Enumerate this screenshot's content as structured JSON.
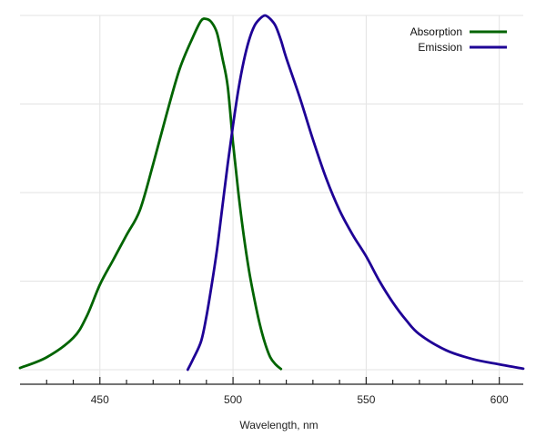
{
  "chart_data": {
    "type": "line",
    "title": "",
    "xlabel": "Wavelength, nm",
    "ylabel": "",
    "xlim": [
      420,
      609
    ],
    "ylim": [
      0,
      100
    ],
    "x_ticks_major": [
      450,
      500,
      550,
      600
    ],
    "x_ticks_minor": [
      430,
      440,
      460,
      470,
      480,
      490,
      510,
      520,
      530,
      540,
      560,
      570,
      580,
      590
    ],
    "y_grid": [
      0,
      25,
      50,
      75,
      100
    ],
    "x_grid": [
      450,
      500,
      550,
      600
    ],
    "grid": true,
    "legend_position": "top-right",
    "series": [
      {
        "name": "Absorption",
        "color": "#006400",
        "points": [
          [
            420,
            0.5
          ],
          [
            430,
            3.5
          ],
          [
            440,
            9
          ],
          [
            445,
            15
          ],
          [
            450,
            24
          ],
          [
            455,
            31
          ],
          [
            460,
            38
          ],
          [
            465,
            45
          ],
          [
            470,
            58
          ],
          [
            475,
            72
          ],
          [
            480,
            85
          ],
          [
            485,
            94
          ],
          [
            488,
            98.5
          ],
          [
            490,
            99
          ],
          [
            492,
            98
          ],
          [
            494,
            95
          ],
          [
            496,
            88
          ],
          [
            498,
            80
          ],
          [
            500,
            64
          ],
          [
            502,
            50
          ],
          [
            504,
            38
          ],
          [
            506,
            28
          ],
          [
            508,
            20
          ],
          [
            510,
            13
          ],
          [
            512,
            7.5
          ],
          [
            514,
            3.5
          ],
          [
            516,
            1.5
          ],
          [
            518,
            0.2
          ]
        ]
      },
      {
        "name": "Emission",
        "color": "#1e0096",
        "points": [
          [
            483,
            0
          ],
          [
            485,
            3
          ],
          [
            488,
            8
          ],
          [
            490,
            15
          ],
          [
            492,
            24
          ],
          [
            494,
            34
          ],
          [
            496,
            46
          ],
          [
            498,
            58
          ],
          [
            500,
            69
          ],
          [
            502,
            79
          ],
          [
            504,
            87
          ],
          [
            506,
            93
          ],
          [
            508,
            97
          ],
          [
            510,
            99
          ],
          [
            512,
            100
          ],
          [
            514,
            99
          ],
          [
            516,
            97
          ],
          [
            518,
            93
          ],
          [
            520,
            88
          ],
          [
            525,
            77
          ],
          [
            530,
            65
          ],
          [
            535,
            54
          ],
          [
            540,
            45
          ],
          [
            545,
            38
          ],
          [
            550,
            32
          ],
          [
            555,
            25
          ],
          [
            560,
            19
          ],
          [
            565,
            14
          ],
          [
            570,
            10
          ],
          [
            580,
            5.5
          ],
          [
            590,
            3
          ],
          [
            600,
            1.5
          ],
          [
            609,
            0.3
          ]
        ]
      }
    ]
  }
}
